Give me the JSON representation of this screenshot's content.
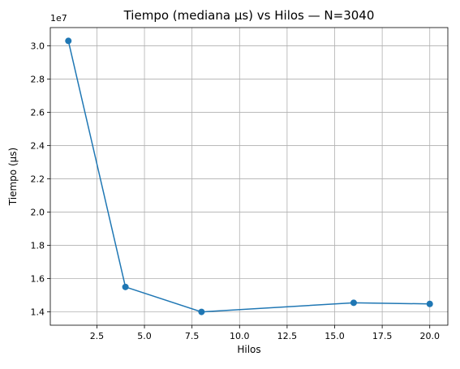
{
  "chart_data": {
    "type": "line",
    "title": "Tiempo (mediana µs) vs Hilos — N=3040",
    "xlabel": "Hilos",
    "ylabel": "Tiempo (µs)",
    "y_offset_label": "1e7",
    "y_scale_factor": 10000000,
    "xlim": [
      0.05,
      20.95
    ],
    "ylim": [
      13200000,
      31100000
    ],
    "grid": true,
    "x_ticks": [
      2.5,
      5.0,
      7.5,
      10.0,
      12.5,
      15.0,
      17.5,
      20.0
    ],
    "x_tick_labels": [
      "2.5",
      "5.0",
      "7.5",
      "10.0",
      "12.5",
      "15.0",
      "17.5",
      "20.0"
    ],
    "y_ticks": [
      14000000,
      16000000,
      18000000,
      20000000,
      22000000,
      24000000,
      26000000,
      28000000,
      30000000
    ],
    "y_tick_labels": [
      "1.4",
      "1.6",
      "1.8",
      "2.0",
      "2.2",
      "2.4",
      "2.6",
      "2.8",
      "3.0"
    ],
    "series": [
      {
        "x": [
          1,
          4,
          8,
          16,
          20
        ],
        "y": [
          30300000,
          15500000,
          14000000,
          14550000,
          14480000
        ],
        "color": "#1f77b4",
        "marker": "circle"
      }
    ]
  }
}
